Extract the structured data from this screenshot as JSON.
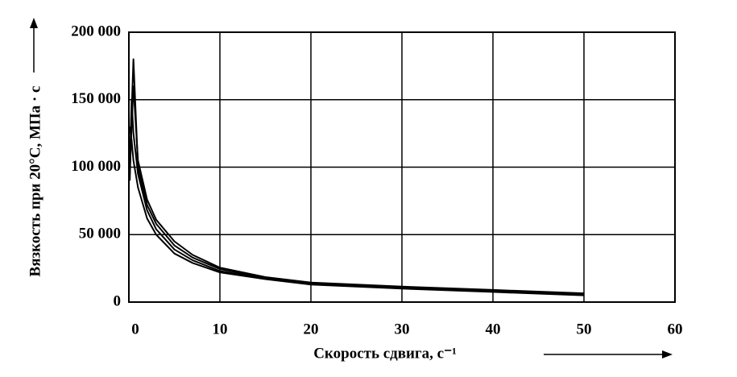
{
  "chart_data": {
    "type": "line",
    "x_label": "Скорость сдвига, с⁻¹",
    "y_label": "Вязкость при 20°С, МПа · с",
    "x": [
      0.1,
      0.3,
      0.5,
      1,
      2,
      3,
      5,
      7,
      10,
      15,
      20,
      30,
      40,
      50
    ],
    "series": [
      {
        "color": "#000000",
        "values": [
          130000,
          120000,
          105000,
          85000,
          62000,
          50000,
          36000,
          29000,
          22000,
          17000,
          13000,
          10000,
          7500,
          5000
        ]
      },
      {
        "color": "#000000",
        "values": [
          100000,
          150000,
          125000,
          95000,
          68000,
          54000,
          39000,
          31000,
          23000,
          17500,
          13500,
          10500,
          8000,
          5500
        ]
      },
      {
        "color": "#000000",
        "values": [
          90000,
          140000,
          180000,
          100000,
          72000,
          58000,
          42000,
          33000,
          24500,
          18000,
          14000,
          11000,
          8500,
          6000
        ]
      },
      {
        "color": "#000000",
        "values": [
          95000,
          130000,
          160000,
          105000,
          76000,
          61000,
          45000,
          35000,
          25500,
          18500,
          14500,
          11500,
          9000,
          6500
        ]
      }
    ],
    "xlim": [
      0,
      60
    ],
    "xticks": [
      0,
      10,
      20,
      30,
      40,
      50,
      60
    ],
    "ylim": [
      0,
      200000
    ],
    "yticks": [
      0,
      {
        "value": 50000,
        "label": "50 000"
      },
      {
        "value": 100000,
        "label": "100 000"
      },
      {
        "value": 150000,
        "label": "150 000"
      },
      {
        "value": 200000,
        "label": "200 000"
      }
    ],
    "grid": true
  }
}
